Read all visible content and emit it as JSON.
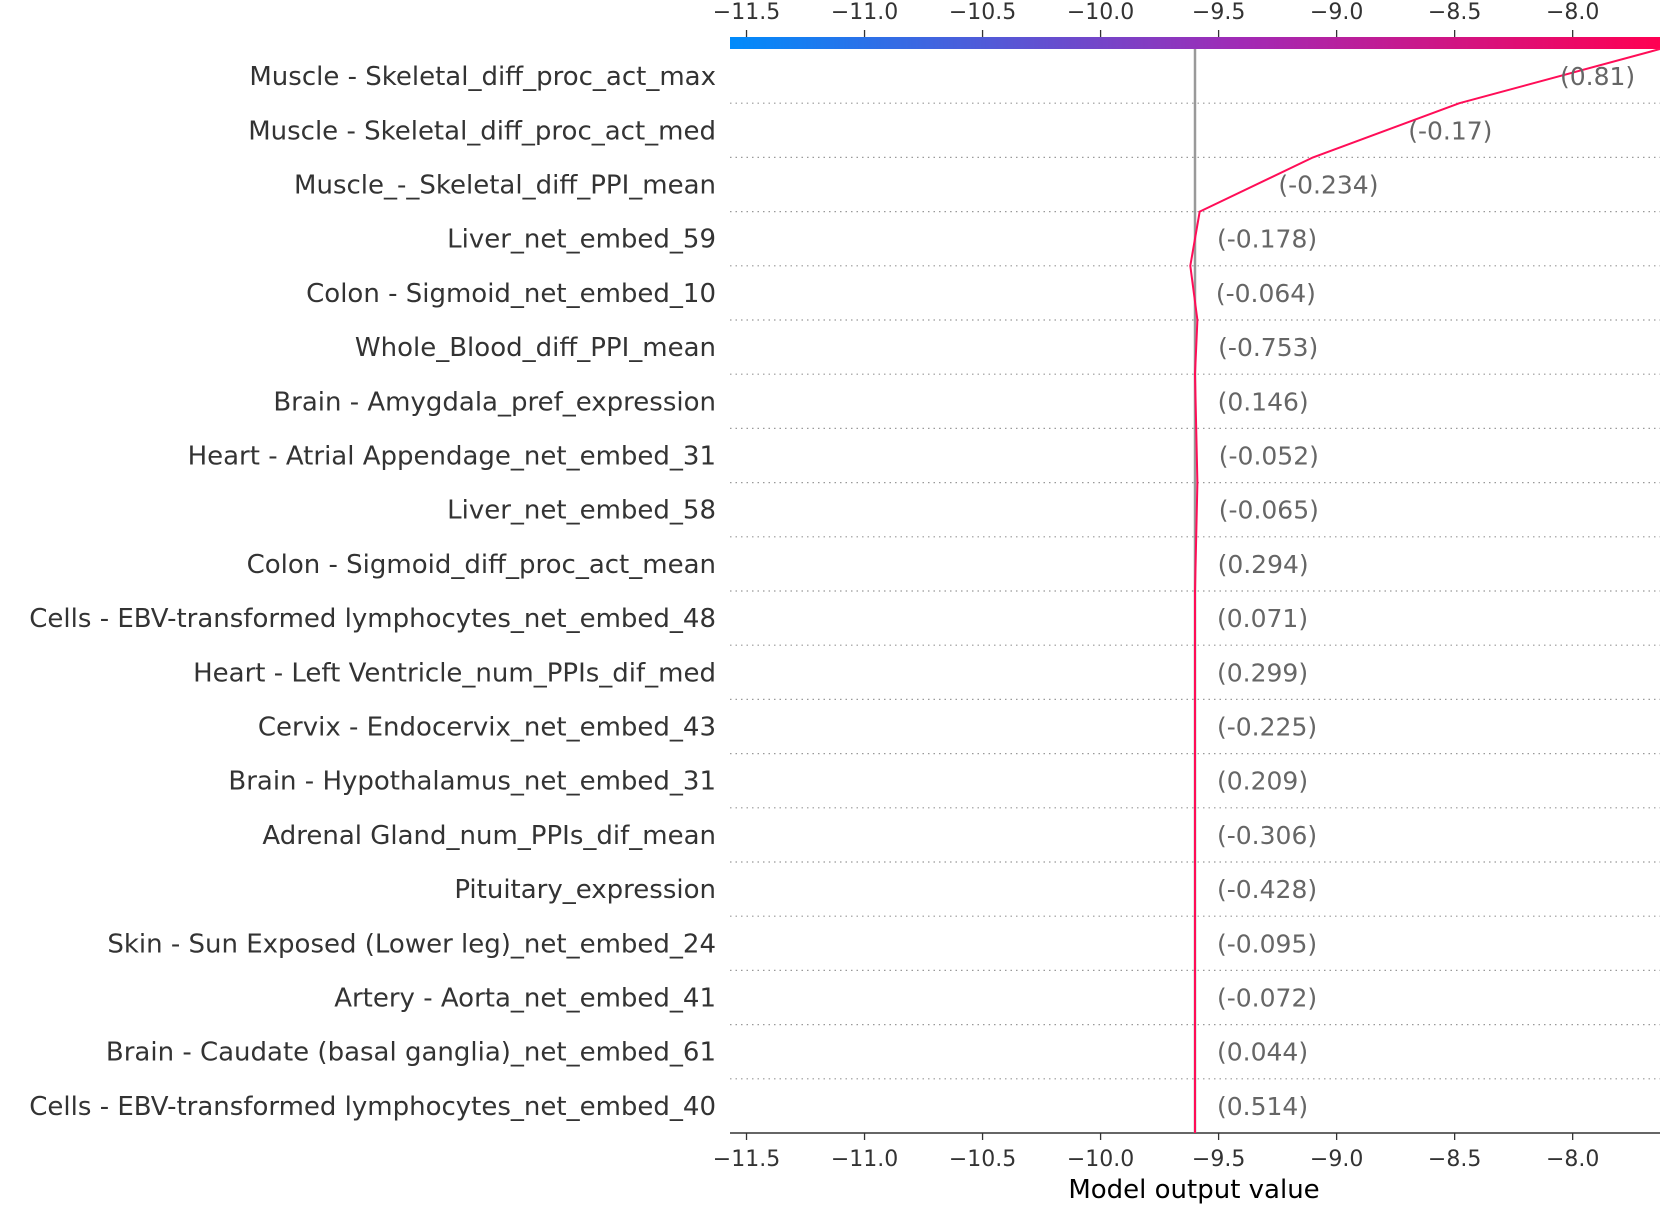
{
  "chart_data": {
    "type": "decision",
    "title": "",
    "xlabel": "Model output value",
    "xlim": [
      -11.57,
      -7.63
    ],
    "base_value": -9.6,
    "ticks": [
      -11.5,
      -11.0,
      -10.5,
      -10.0,
      -9.5,
      -9.0,
      -8.5,
      -8.0
    ],
    "tick_labels": [
      "−11.5",
      "−11.0",
      "−10.5",
      "−10.0",
      "−9.5",
      "−9.0",
      "−8.5",
      "−8.0"
    ],
    "features": [
      {
        "name": "Muscle - Skeletal_diff_proc_act_max",
        "value_label": "(0.81)",
        "output": -8.48
      },
      {
        "name": "Muscle - Skeletal_diff_proc_act_med",
        "value_label": "(-0.17)",
        "output": -9.1
      },
      {
        "name": "Muscle_-_Skeletal_diff_PPI_mean",
        "value_label": "(-0.234)",
        "output": -9.58
      },
      {
        "name": "Liver_net_embed_59",
        "value_label": "(-0.178)",
        "output": -9.62
      },
      {
        "name": "Colon - Sigmoid_net_embed_10",
        "value_label": "(-0.064)",
        "output": -9.59
      },
      {
        "name": "Whole_Blood_diff_PPI_mean",
        "value_label": "(-0.753)",
        "output": -9.6
      },
      {
        "name": "Brain - Amygdala_pref_expression",
        "value_label": "(0.146)",
        "output": -9.595
      },
      {
        "name": "Heart - Atrial Appendage_net_embed_31",
        "value_label": "(-0.052)",
        "output": -9.59
      },
      {
        "name": "Liver_net_embed_58",
        "value_label": "(-0.065)",
        "output": -9.595
      },
      {
        "name": "Colon - Sigmoid_diff_proc_act_mean",
        "value_label": "(0.294)",
        "output": -9.6
      },
      {
        "name": "Cells - EBV-transformed lymphocytes_net_embed_48",
        "value_label": "(0.071)",
        "output": -9.6
      },
      {
        "name": "Heart - Left Ventricle_num_PPIs_dif_med",
        "value_label": "(0.299)",
        "output": -9.6
      },
      {
        "name": "Cervix - Endocervix_net_embed_43",
        "value_label": "(-0.225)",
        "output": -9.6
      },
      {
        "name": "Brain - Hypothalamus_net_embed_31",
        "value_label": "(0.209)",
        "output": -9.6
      },
      {
        "name": "Adrenal Gland_num_PPIs_dif_mean",
        "value_label": "(-0.306)",
        "output": -9.6
      },
      {
        "name": "Pituitary_expression",
        "value_label": "(-0.428)",
        "output": -9.6
      },
      {
        "name": "Skin - Sun Exposed (Lower leg)_net_embed_24",
        "value_label": "(-0.095)",
        "output": -9.6
      },
      {
        "name": "Artery - Aorta_net_embed_41",
        "value_label": "(-0.072)",
        "output": -9.6
      },
      {
        "name": "Brain - Caudate (basal ganglia)_net_embed_61",
        "value_label": "(0.044)",
        "output": -9.6
      },
      {
        "name": "Cells - EBV-transformed lymphocytes_net_embed_40",
        "value_label": "(0.514)",
        "output": -9.6
      }
    ],
    "final_output": -7.63,
    "colors": {
      "line": "#ff0d57",
      "baseline": "#999999",
      "grid": "#999999",
      "colorbar_low": "#008bfb",
      "colorbar_high": "#ff0052",
      "text": "#333333",
      "value_text": "#666666"
    },
    "grid": true
  }
}
